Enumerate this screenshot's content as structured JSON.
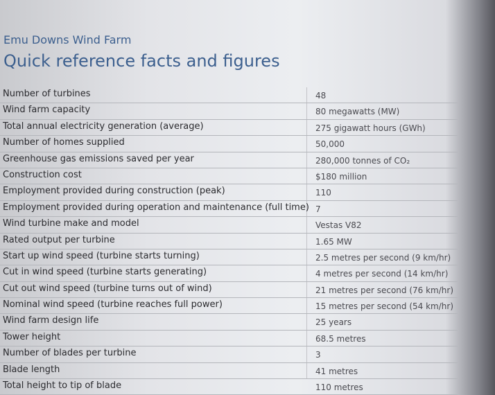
{
  "header": {
    "subtitle": "Emu Downs Wind Farm",
    "title": "Quick reference facts and figures"
  },
  "table": {
    "rows": [
      [
        "Number of turbines",
        "48"
      ],
      [
        "Wind farm capacity",
        "80 megawatts (MW)"
      ],
      [
        "Total annual electricity generation (average)",
        "275 gigawatt hours (GWh)"
      ],
      [
        "Number of homes supplied",
        "50,000"
      ],
      [
        "Greenhouse gas emissions saved per year",
        "280,000 tonnes of CO₂"
      ],
      [
        "Construction cost",
        "$180 million"
      ],
      [
        "Employment provided during construction (peak)",
        "110"
      ],
      [
        "Employment provided during operation and maintenance (full time)",
        "7"
      ],
      [
        "Wind turbine make and model",
        "Vestas V82"
      ],
      [
        "Rated output per turbine",
        "1.65 MW"
      ],
      [
        "Start up wind speed (turbine starts turning)",
        "2.5 metres per second (9 km/hr)"
      ],
      [
        "Cut in wind speed (turbine starts generating)",
        "4 metres per second (14 km/hr)"
      ],
      [
        "Cut out wind speed (turbine turns out of wind)",
        "21 metres per second (76 km/hr)"
      ],
      [
        "Nominal wind speed (turbine reaches full power)",
        "15 metres per second (54 km/hr)"
      ],
      [
        "Wind farm design life",
        "25 years"
      ],
      [
        "Tower height",
        "68.5 metres"
      ],
      [
        "Number of blades per turbine",
        "3"
      ],
      [
        "Blade length",
        "41 metres"
      ],
      [
        "Total height to tip of blade",
        "110 metres"
      ]
    ]
  }
}
